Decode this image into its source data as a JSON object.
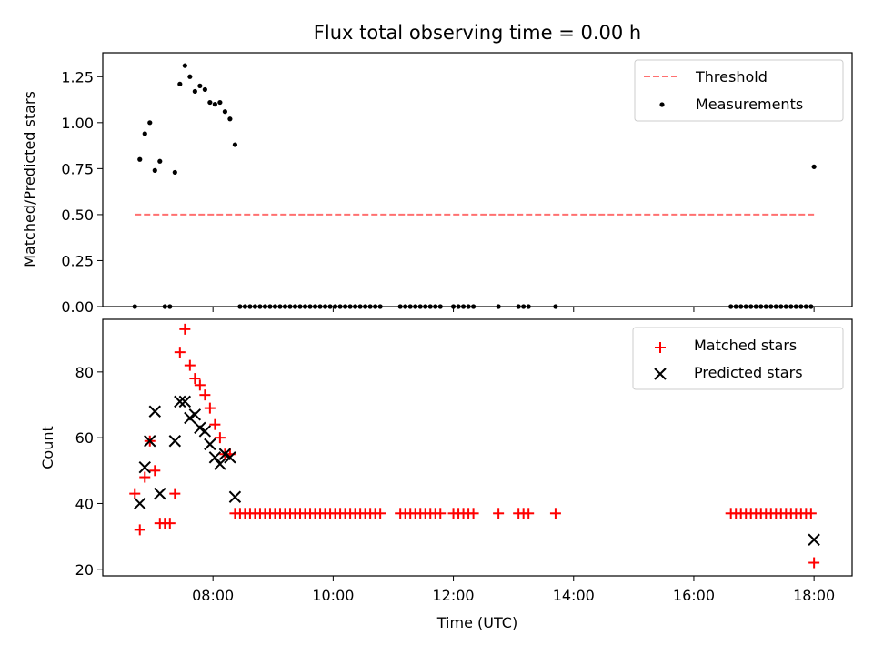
{
  "chart_data": [
    {
      "type": "scatter",
      "title": "Flux total observing time = 0.00 h",
      "xlabel": "",
      "ylabel": "Matched/Predicted stars",
      "ylim": [
        0.0,
        1.38
      ],
      "yticks": [
        "0.00",
        "0.25",
        "0.50",
        "0.75",
        "1.00",
        "1.25"
      ],
      "ytick_values": [
        0.0,
        0.25,
        0.5,
        0.75,
        1.0,
        1.25
      ],
      "legend": {
        "position": "top-right",
        "entries": [
          "Threshold",
          "Measurements"
        ]
      },
      "threshold": {
        "name": "Threshold",
        "value": 0.5,
        "x_start": "06:42",
        "x_end": "18:00",
        "color": "#ff7070",
        "style": "dashed"
      },
      "series": [
        {
          "name": "Measurements",
          "color": "#000000",
          "marker": "dot",
          "x": [
            "06:42",
            "06:47",
            "06:52",
            "06:57",
            "07:02",
            "07:07",
            "07:12",
            "07:17",
            "07:22",
            "07:27",
            "07:32",
            "07:37",
            "07:42",
            "07:47",
            "07:52",
            "07:57",
            "08:02",
            "08:07",
            "08:12",
            "08:17",
            "08:22",
            "08:27",
            "08:32",
            "08:37",
            "08:42",
            "08:47",
            "08:52",
            "08:57",
            "09:02",
            "09:07",
            "09:12",
            "09:17",
            "09:22",
            "09:27",
            "09:32",
            "09:37",
            "09:42",
            "09:47",
            "09:52",
            "09:57",
            "10:02",
            "10:07",
            "10:12",
            "10:17",
            "10:22",
            "10:27",
            "10:32",
            "10:37",
            "10:42",
            "10:47",
            "11:07",
            "11:12",
            "11:17",
            "11:22",
            "11:27",
            "11:32",
            "11:37",
            "11:42",
            "11:47",
            "12:00",
            "12:05",
            "12:10",
            "12:15",
            "12:20",
            "12:45",
            "13:05",
            "13:10",
            "13:15",
            "13:42",
            "16:37",
            "16:42",
            "16:47",
            "16:52",
            "16:57",
            "17:02",
            "17:07",
            "17:12",
            "17:17",
            "17:22",
            "17:27",
            "17:32",
            "17:37",
            "17:42",
            "17:47",
            "17:52",
            "17:57",
            "18:00"
          ],
          "y": [
            0.0,
            0.8,
            0.94,
            1.0,
            0.74,
            0.79,
            0.0,
            0.0,
            0.73,
            1.21,
            1.31,
            1.25,
            1.17,
            1.2,
            1.18,
            1.11,
            1.1,
            1.11,
            1.06,
            1.02,
            0.88,
            0.0,
            0.0,
            0.0,
            0.0,
            0.0,
            0.0,
            0.0,
            0.0,
            0.0,
            0.0,
            0.0,
            0.0,
            0.0,
            0.0,
            0.0,
            0.0,
            0.0,
            0.0,
            0.0,
            0.0,
            0.0,
            0.0,
            0.0,
            0.0,
            0.0,
            0.0,
            0.0,
            0.0,
            0.0,
            0.0,
            0.0,
            0.0,
            0.0,
            0.0,
            0.0,
            0.0,
            0.0,
            0.0,
            0.0,
            0.0,
            0.0,
            0.0,
            0.0,
            0.0,
            0.0,
            0.0,
            0.0,
            0.0,
            0.0,
            0.0,
            0.0,
            0.0,
            0.0,
            0.0,
            0.0,
            0.0,
            0.0,
            0.0,
            0.0,
            0.0,
            0.0,
            0.0,
            0.0,
            0.0,
            0.0,
            0.76
          ]
        }
      ]
    },
    {
      "type": "scatter",
      "title": "",
      "xlabel": "Time (UTC)",
      "ylabel": "Count",
      "ylim": [
        18,
        96
      ],
      "yticks": [
        "20",
        "40",
        "60",
        "80"
      ],
      "ytick_values": [
        20,
        40,
        60,
        80
      ],
      "xlim": [
        "06:10",
        "18:38"
      ],
      "xticks": [
        "08:00",
        "10:00",
        "12:00",
        "14:00",
        "16:00",
        "18:00"
      ],
      "legend": {
        "position": "top-right",
        "entries": [
          "Matched stars",
          "Predicted stars"
        ]
      },
      "series": [
        {
          "name": "Matched stars",
          "color": "#ff0000",
          "marker": "plus",
          "x": [
            "06:42",
            "06:47",
            "06:52",
            "06:57",
            "07:02",
            "07:07",
            "07:12",
            "07:17",
            "07:22",
            "07:27",
            "07:32",
            "07:37",
            "07:42",
            "07:47",
            "07:52",
            "07:57",
            "08:02",
            "08:07",
            "08:12",
            "08:17",
            "08:22",
            "08:27",
            "08:32",
            "08:37",
            "08:42",
            "08:47",
            "08:52",
            "08:57",
            "09:02",
            "09:07",
            "09:12",
            "09:17",
            "09:22",
            "09:27",
            "09:32",
            "09:37",
            "09:42",
            "09:47",
            "09:52",
            "09:57",
            "10:02",
            "10:07",
            "10:12",
            "10:17",
            "10:22",
            "10:27",
            "10:32",
            "10:37",
            "10:42",
            "10:47",
            "11:07",
            "11:12",
            "11:17",
            "11:22",
            "11:27",
            "11:32",
            "11:37",
            "11:42",
            "11:47",
            "12:00",
            "12:05",
            "12:10",
            "12:15",
            "12:20",
            "12:45",
            "13:05",
            "13:10",
            "13:15",
            "13:42",
            "16:37",
            "16:42",
            "16:47",
            "16:52",
            "16:57",
            "17:02",
            "17:07",
            "17:12",
            "17:17",
            "17:22",
            "17:27",
            "17:32",
            "17:37",
            "17:42",
            "17:47",
            "17:52",
            "17:57",
            "18:00"
          ],
          "y": [
            43,
            32,
            48,
            59,
            50,
            34,
            34,
            34,
            43,
            86,
            93,
            82,
            78,
            76,
            73,
            69,
            64,
            60,
            55,
            55,
            37,
            37,
            37,
            37,
            37,
            37,
            37,
            37,
            37,
            37,
            37,
            37,
            37,
            37,
            37,
            37,
            37,
            37,
            37,
            37,
            37,
            37,
            37,
            37,
            37,
            37,
            37,
            37,
            37,
            37,
            37,
            37,
            37,
            37,
            37,
            37,
            37,
            37,
            37,
            37,
            37,
            37,
            37,
            37,
            37,
            37,
            37,
            37,
            37,
            37,
            37,
            37,
            37,
            37,
            37,
            37,
            37,
            37,
            37,
            37,
            37,
            37,
            37,
            37,
            37,
            37,
            22
          ]
        },
        {
          "name": "Predicted stars",
          "color": "#000000",
          "marker": "x",
          "x": [
            "06:47",
            "06:52",
            "06:57",
            "07:02",
            "07:07",
            "07:22",
            "07:27",
            "07:32",
            "07:37",
            "07:42",
            "07:47",
            "07:52",
            "07:57",
            "08:02",
            "08:07",
            "08:12",
            "08:17",
            "08:22",
            "18:00"
          ],
          "y": [
            40,
            51,
            59,
            68,
            43,
            59,
            71,
            71,
            66,
            67,
            63,
            62,
            58,
            54,
            52,
            55,
            54,
            42,
            29
          ]
        }
      ]
    }
  ]
}
